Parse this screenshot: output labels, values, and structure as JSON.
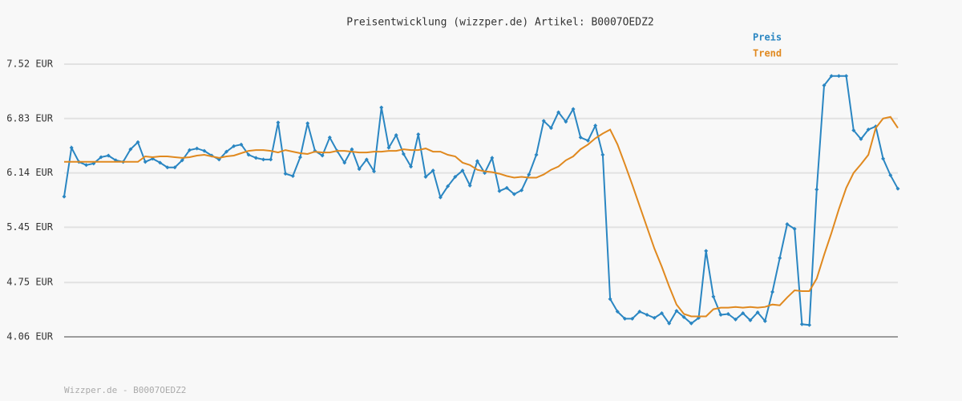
{
  "chart_data": {
    "type": "line",
    "title": "Preisentwicklung (wizzper.de) Artikel: B0007OEDZ2",
    "footer": "Wizzper.de - B0007OEDZ2",
    "ylim": [
      4.06,
      7.52
    ],
    "yticks": [
      {
        "value": 4.06,
        "label": "4.06 EUR"
      },
      {
        "value": 4.75,
        "label": "4.75 EUR"
      },
      {
        "value": 5.45,
        "label": "5.45 EUR"
      },
      {
        "value": 6.14,
        "label": "6.14 EUR"
      },
      {
        "value": 6.83,
        "label": "6.83 EUR"
      },
      {
        "value": 7.52,
        "label": "7.52 EUR"
      }
    ],
    "grid": true,
    "legend": "top-right",
    "series": [
      {
        "name": "Preis",
        "color": "#2a86c2",
        "markers": true,
        "values": [
          5.84,
          6.46,
          6.28,
          6.24,
          6.26,
          6.34,
          6.36,
          6.3,
          6.28,
          6.44,
          6.53,
          6.28,
          6.32,
          6.27,
          6.21,
          6.21,
          6.3,
          6.43,
          6.45,
          6.42,
          6.36,
          6.31,
          6.41,
          6.48,
          6.5,
          6.37,
          6.33,
          6.31,
          6.31,
          6.78,
          6.13,
          6.1,
          6.34,
          6.77,
          6.42,
          6.36,
          6.59,
          6.42,
          6.27,
          6.44,
          6.19,
          6.31,
          6.16,
          6.97,
          6.46,
          6.62,
          6.38,
          6.22,
          6.63,
          6.09,
          6.17,
          5.83,
          5.97,
          6.09,
          6.17,
          5.98,
          6.29,
          6.14,
          6.33,
          5.91,
          5.95,
          5.87,
          5.92,
          6.12,
          6.37,
          6.8,
          6.71,
          6.91,
          6.79,
          6.95,
          6.59,
          6.55,
          6.74,
          6.37,
          4.54,
          4.38,
          4.29,
          4.29,
          4.38,
          4.34,
          4.3,
          4.36,
          4.23,
          4.39,
          4.31,
          4.23,
          4.3,
          5.15,
          4.57,
          4.34,
          4.35,
          4.28,
          4.36,
          4.27,
          4.37,
          4.26,
          4.63,
          5.06,
          5.49,
          5.43,
          4.22,
          4.21,
          5.93,
          7.25,
          7.37,
          7.37,
          7.37,
          6.68,
          6.57,
          6.69,
          6.73,
          6.32,
          6.11,
          5.94
        ]
      },
      {
        "name": "Trend",
        "color": "#e0891f",
        "markers": false,
        "values": [
          6.28,
          6.28,
          6.28,
          6.28,
          6.28,
          6.28,
          6.28,
          6.28,
          6.28,
          6.28,
          6.28,
          6.35,
          6.34,
          6.35,
          6.35,
          6.34,
          6.33,
          6.34,
          6.36,
          6.37,
          6.35,
          6.33,
          6.35,
          6.36,
          6.39,
          6.42,
          6.43,
          6.43,
          6.42,
          6.4,
          6.43,
          6.41,
          6.39,
          6.38,
          6.41,
          6.4,
          6.4,
          6.42,
          6.42,
          6.41,
          6.4,
          6.4,
          6.41,
          6.41,
          6.42,
          6.42,
          6.44,
          6.43,
          6.43,
          6.45,
          6.41,
          6.41,
          6.37,
          6.35,
          6.27,
          6.24,
          6.18,
          6.16,
          6.15,
          6.13,
          6.1,
          6.08,
          6.09,
          6.08,
          6.08,
          6.12,
          6.18,
          6.22,
          6.3,
          6.35,
          6.44,
          6.5,
          6.58,
          6.64,
          6.69,
          6.5,
          6.25,
          5.99,
          5.72,
          5.45,
          5.18,
          4.95,
          4.7,
          4.47,
          4.35,
          4.32,
          4.32,
          4.32,
          4.41,
          4.43,
          4.43,
          4.44,
          4.43,
          4.44,
          4.43,
          4.44,
          4.47,
          4.46,
          4.56,
          4.65,
          4.64,
          4.64,
          4.8,
          5.1,
          5.38,
          5.68,
          5.95,
          6.14,
          6.25,
          6.37,
          6.71,
          6.83,
          6.85,
          6.71
        ]
      }
    ]
  }
}
